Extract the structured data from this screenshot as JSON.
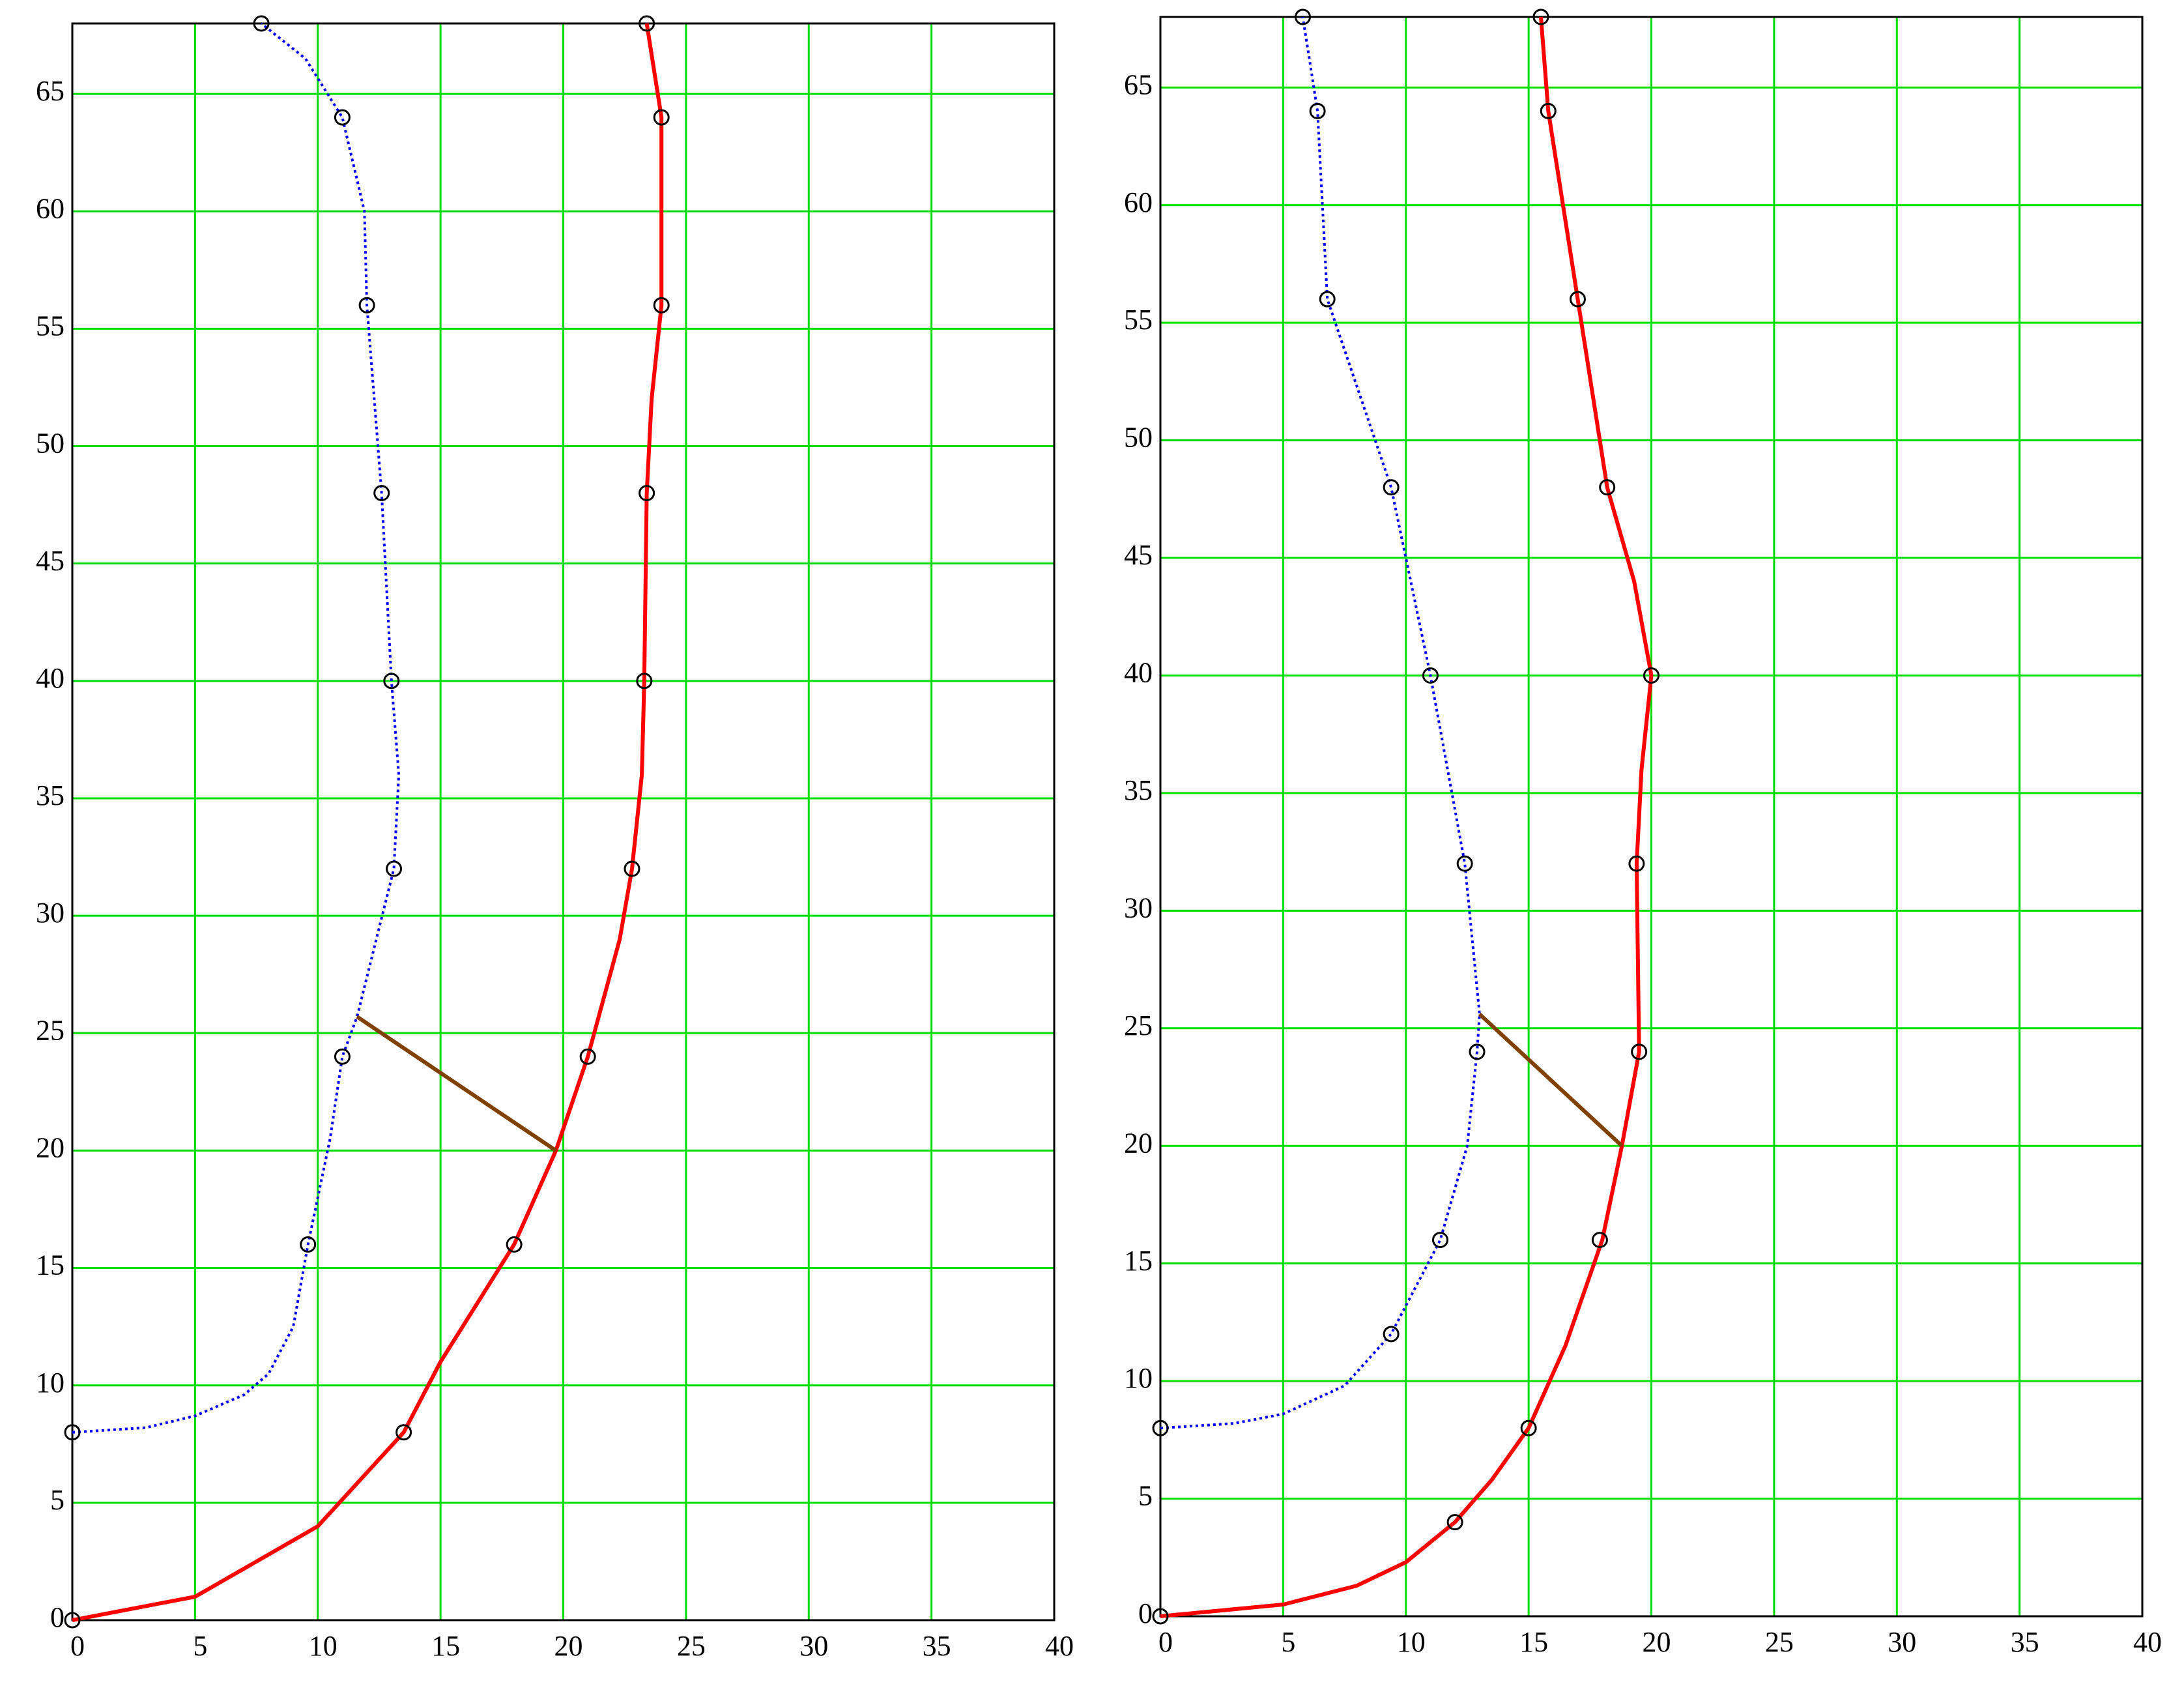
{
  "chart_data": [
    {
      "type": "line",
      "xlim": [
        0,
        40
      ],
      "ylim": [
        0,
        68
      ],
      "xticks": [
        0,
        5,
        10,
        15,
        20,
        25,
        30,
        35,
        40
      ],
      "yticks": [
        0,
        5,
        10,
        15,
        20,
        25,
        30,
        35,
        40,
        45,
        50,
        55,
        60,
        65
      ],
      "grid": true,
      "grid_color": "#00dd00",
      "series": [
        {
          "color": "#ff0000",
          "style": "solid",
          "x": [
            0,
            5,
            10,
            13.5,
            15,
            18,
            19.7,
            21,
            22.3,
            22.8,
            23.2,
            23.3,
            23.4,
            23.6,
            24,
            24,
            23.4
          ],
          "values": [
            0,
            1,
            4,
            8,
            11,
            16,
            20,
            24,
            29,
            32,
            36,
            40,
            48,
            52,
            56,
            64,
            68
          ]
        },
        {
          "color": "#0000ff",
          "style": "dotted",
          "x": [
            0,
            3,
            5,
            7,
            8,
            9,
            9.6,
            10.5,
            11,
            11.6,
            13.1,
            13.3,
            13,
            12.6,
            12,
            11.9,
            11,
            9.5,
            7.7
          ],
          "values": [
            8,
            8.2,
            8.7,
            9.6,
            10.5,
            12.5,
            16,
            20.5,
            24,
            25.7,
            32,
            36,
            40,
            48,
            56,
            60,
            64,
            66.5,
            68
          ]
        },
        {
          "color": "#804000",
          "style": "solid",
          "x": [
            11.6,
            19.7
          ],
          "values": [
            25.7,
            20
          ]
        },
        {
          "color": "#000000",
          "style": "markers",
          "x": [
            0,
            13.5,
            18,
            21,
            22.8,
            23.3,
            23.4,
            24,
            24,
            23.4,
            0,
            9.6,
            11,
            13.1,
            13,
            12.6,
            12,
            11,
            7.7
          ],
          "values": [
            0,
            8,
            16,
            24,
            32,
            40,
            48,
            56,
            64,
            68,
            8,
            16,
            24,
            32,
            40,
            48,
            56,
            64,
            68
          ]
        }
      ]
    },
    {
      "type": "line",
      "xlim": [
        0,
        40
      ],
      "ylim": [
        0,
        68
      ],
      "xticks": [
        0,
        5,
        10,
        15,
        20,
        25,
        30,
        35,
        40
      ],
      "yticks": [
        0,
        5,
        10,
        15,
        20,
        25,
        30,
        35,
        40,
        45,
        50,
        55,
        60,
        65
      ],
      "grid": true,
      "grid_color": "#00dd00",
      "series": [
        {
          "color": "#ff0000",
          "style": "solid",
          "x": [
            0,
            5,
            8,
            10,
            12,
            13.5,
            15,
            16.5,
            18,
            18.8,
            19.5,
            19.4,
            19.6,
            20,
            19.3,
            18.2,
            17,
            15.8,
            15.5
          ],
          "values": [
            0,
            0.5,
            1.3,
            2.3,
            4,
            5.8,
            8,
            11.5,
            16,
            20,
            24,
            32,
            36,
            40,
            44,
            48,
            56,
            64,
            68
          ]
        },
        {
          "color": "#0000ff",
          "style": "dotted",
          "x": [
            0,
            3,
            5,
            7.5,
            9.4,
            11.4,
            12.5,
            12.9,
            13,
            12.4,
            11,
            9.4,
            6.8,
            6.4,
            5.8
          ],
          "values": [
            8,
            8.2,
            8.6,
            9.8,
            12,
            16,
            20,
            24,
            25.6,
            32,
            40,
            48,
            56,
            64,
            68
          ]
        },
        {
          "color": "#804000",
          "style": "solid",
          "x": [
            13,
            18.8
          ],
          "values": [
            25.6,
            20
          ]
        },
        {
          "color": "#000000",
          "style": "markers",
          "x": [
            0,
            12,
            15,
            17.9,
            19.5,
            19.4,
            20,
            18.2,
            17,
            15.8,
            15.5,
            0,
            9.4,
            11.4,
            12.9,
            12.4,
            11,
            9.4,
            6.8,
            6.4,
            5.8
          ],
          "values": [
            0,
            4,
            8,
            16,
            24,
            32,
            40,
            48,
            56,
            64,
            68,
            8,
            12,
            16,
            24,
            32,
            40,
            48,
            56,
            64,
            68
          ]
        }
      ]
    }
  ]
}
